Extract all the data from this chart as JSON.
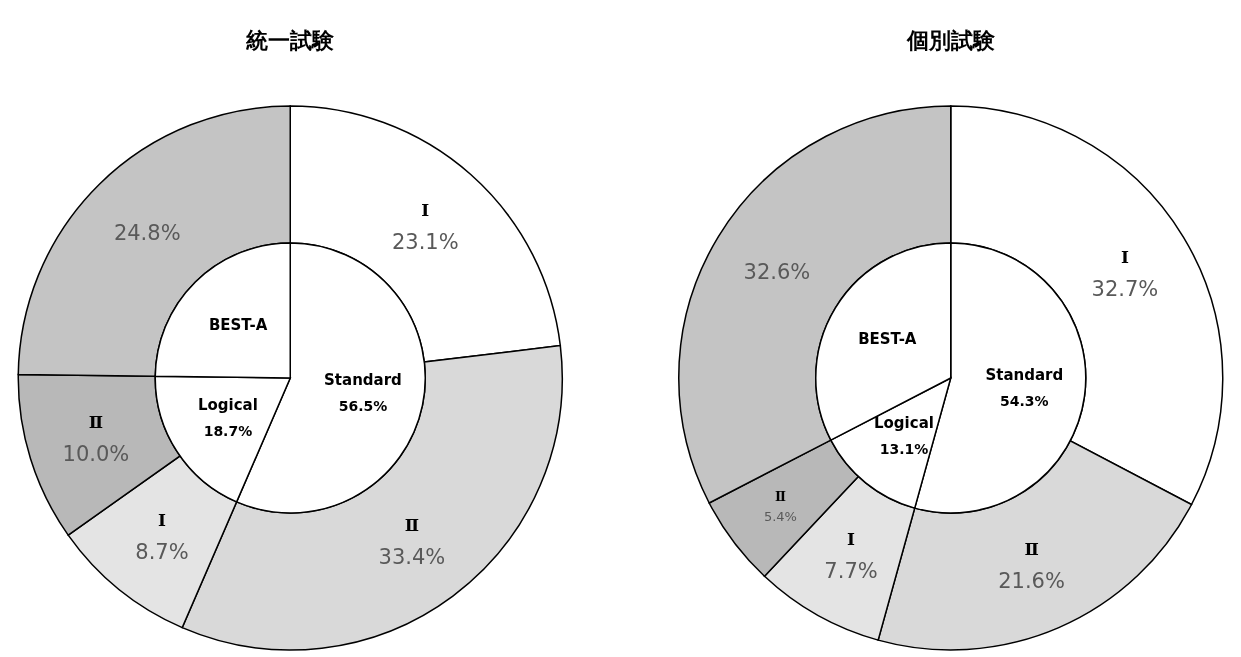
{
  "chart_data": [
    {
      "type": "pie",
      "title": "統一試験",
      "categories": [
        "Standard",
        "Logical",
        "BEST-A"
      ],
      "values": [
        56.5,
        18.7,
        24.8
      ],
      "value_labels": [
        "56.5%",
        "18.7%",
        null
      ],
      "colors": [
        "#ffffff",
        "#ffffff",
        "#ffffff"
      ]
    },
    {
      "type": "donut",
      "categories": [
        "Ⅰ",
        "Ⅱ",
        "Ⅰ",
        "Ⅱ",
        null
      ],
      "values": [
        23.1,
        33.4,
        8.7,
        10.0,
        24.8
      ],
      "value_labels": [
        "23.1%",
        "33.4%",
        "8.7%",
        "10.0%",
        "24.8%"
      ],
      "colors": [
        "#ffffff",
        "#d9d9d9",
        "#e4e4e4",
        "#b8b8b8",
        "#c4c4c4"
      ]
    },
    {
      "type": "pie",
      "title": "個別試験",
      "categories": [
        "Standard",
        "Logical",
        "BEST-A"
      ],
      "values": [
        54.3,
        13.1,
        32.6
      ],
      "value_labels": [
        "54.3%",
        "13.1%",
        null
      ],
      "colors": [
        "#ffffff",
        "#ffffff",
        "#ffffff"
      ]
    },
    {
      "type": "donut",
      "categories": [
        "Ⅰ",
        "Ⅱ",
        "Ⅰ",
        "Ⅱ",
        null
      ],
      "values": [
        32.7,
        21.6,
        7.7,
        5.4,
        32.6
      ],
      "value_labels": [
        "32.7%",
        "21.6%",
        "7.7%",
        "5.4%",
        "32.6%"
      ],
      "colors": [
        "#ffffff",
        "#d9d9d9",
        "#e4e4e4",
        "#b8b8b8",
        "#c4c4c4"
      ]
    }
  ]
}
